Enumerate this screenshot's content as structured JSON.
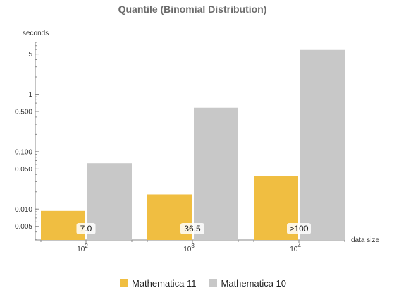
{
  "chart_data": {
    "type": "bar",
    "title": "Quantile (Binomial Distribution)",
    "ylabel": "seconds",
    "xlabel": "data size",
    "yscale": "log",
    "ylim": [
      0.0029,
      8
    ],
    "yticks": [
      {
        "value": 0.005,
        "label": "0.005"
      },
      {
        "value": 0.01,
        "label": "0.010"
      },
      {
        "value": 0.05,
        "label": "0.050"
      },
      {
        "value": 0.1,
        "label": "0.100"
      },
      {
        "value": 0.5,
        "label": "0.500"
      },
      {
        "value": 1,
        "label": "1"
      },
      {
        "value": 5,
        "label": "5"
      }
    ],
    "categories": [
      {
        "base": "10",
        "exp": "2"
      },
      {
        "base": "10",
        "exp": "3"
      },
      {
        "base": "10",
        "exp": "4"
      }
    ],
    "series": [
      {
        "name": "Mathematica 11",
        "color": "#f0be41",
        "values": [
          0.0093,
          0.018,
          0.037
        ]
      },
      {
        "name": "Mathematica 10",
        "color": "#c8c8c8",
        "values": [
          0.063,
          0.58,
          5.9
        ]
      }
    ],
    "annotations": [
      "7.0",
      "36.5",
      ">100"
    ],
    "grid": false,
    "legend_position": "bottom-center"
  }
}
